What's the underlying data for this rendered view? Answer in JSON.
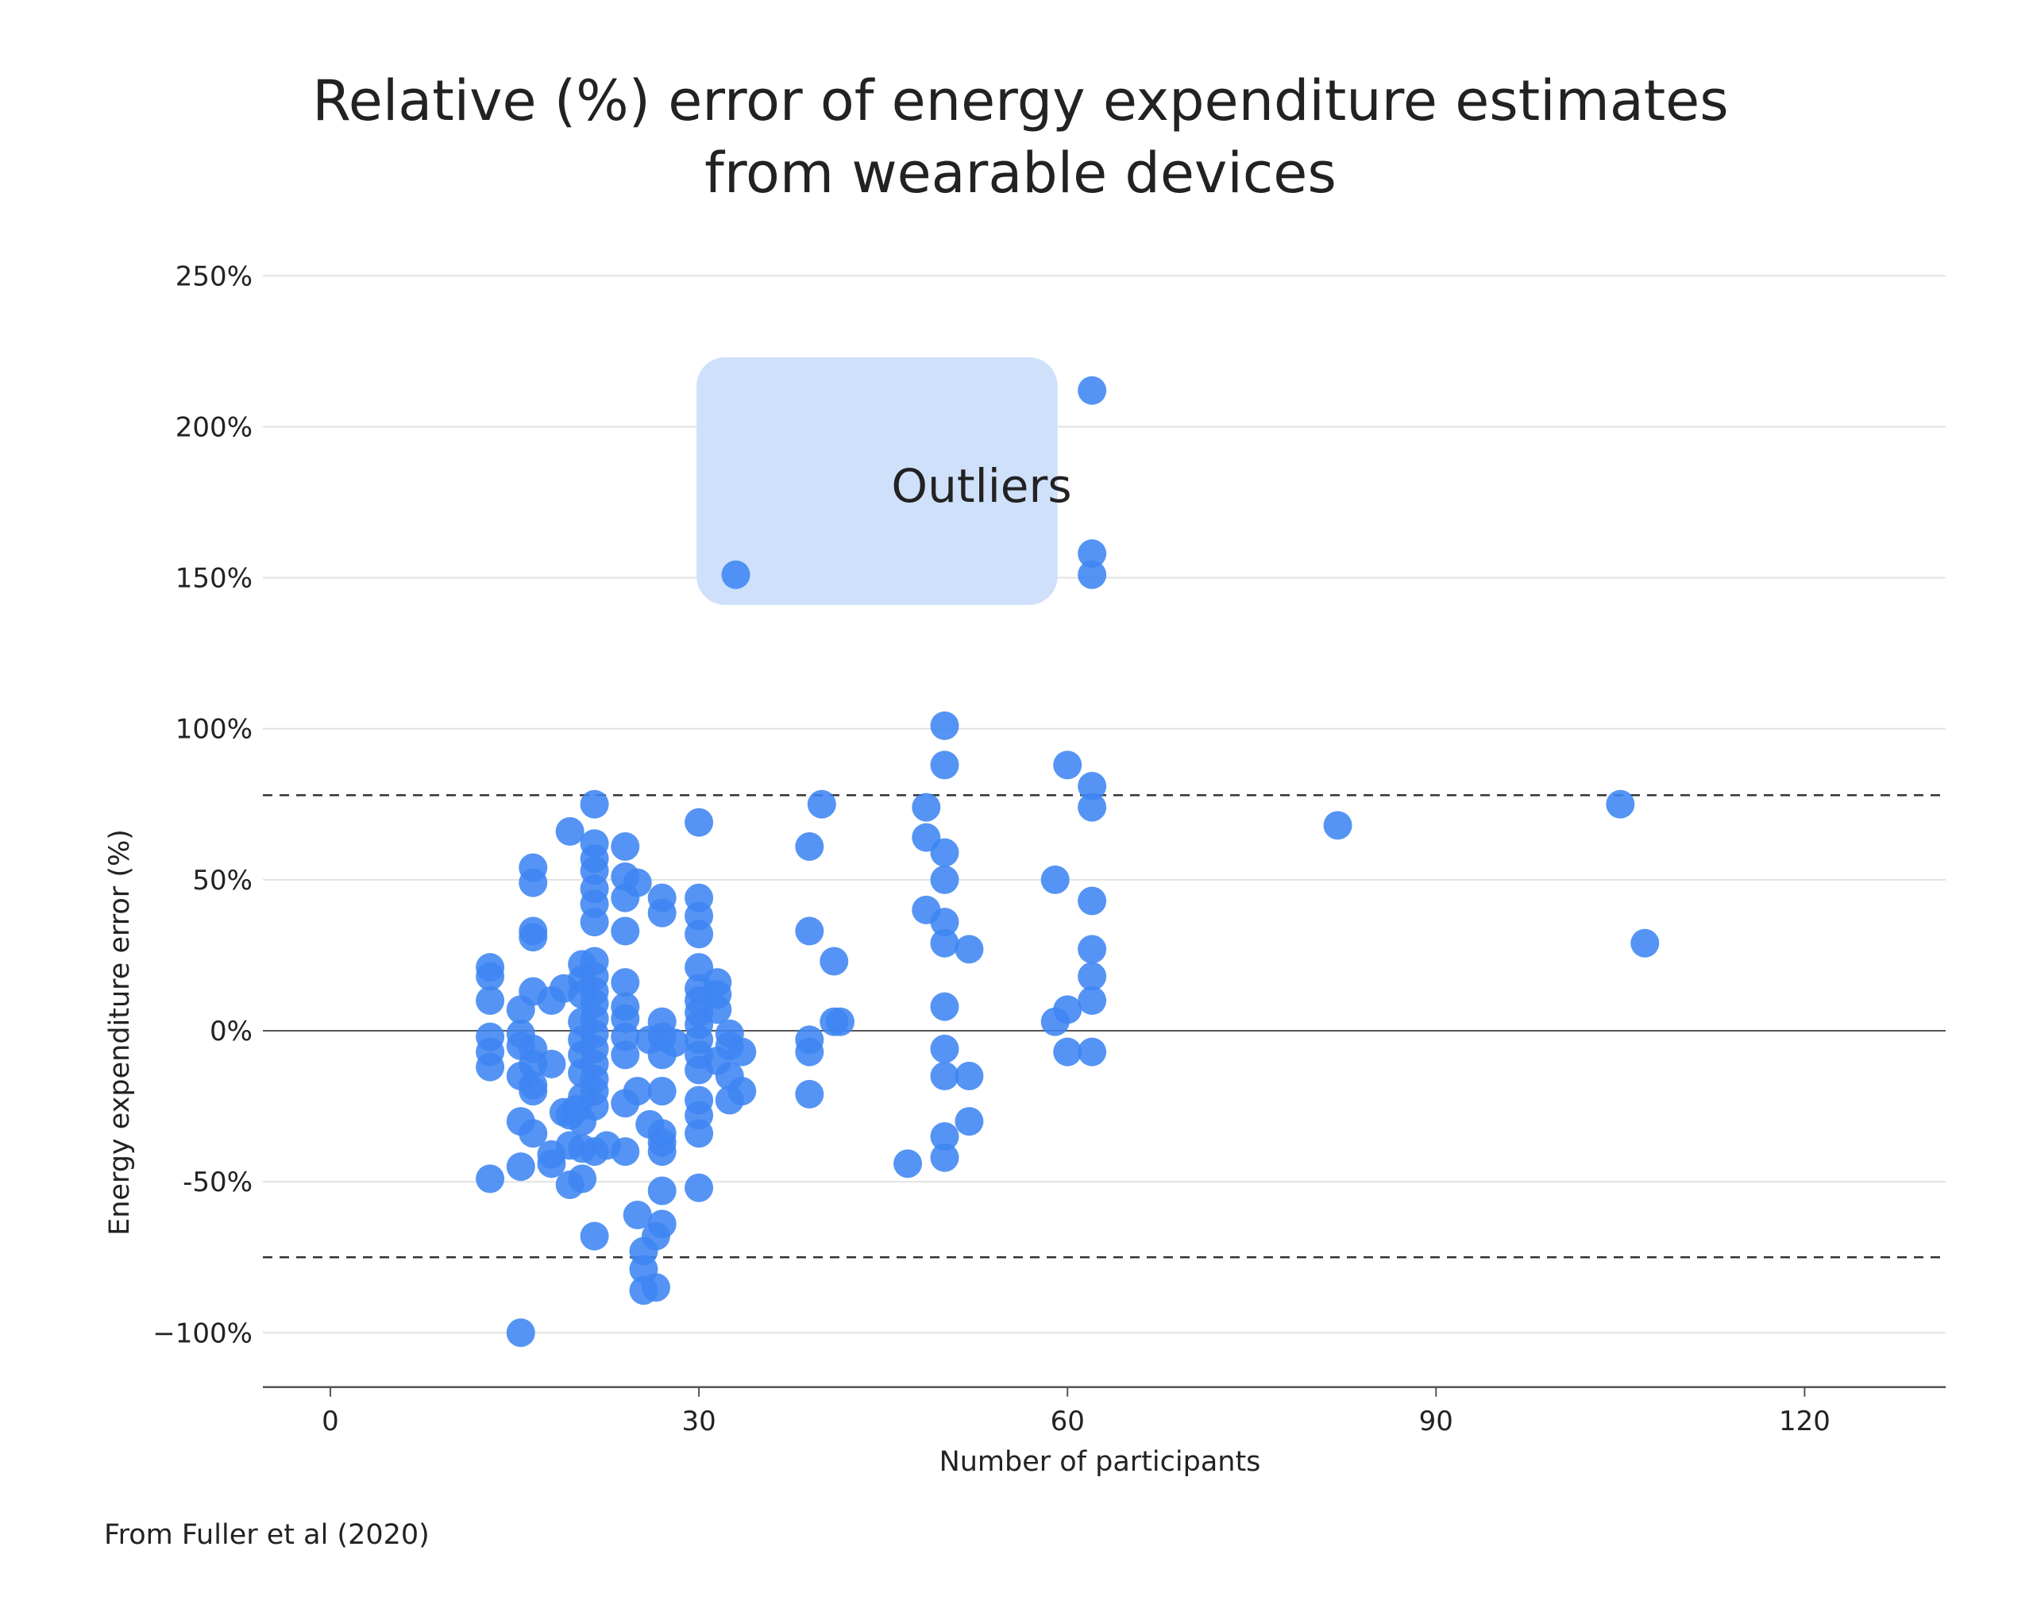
{
  "chart_data": {
    "type": "scatter",
    "title_lines": [
      "Relative (%) error of energy expenditure estimates",
      "from wearable devices"
    ],
    "xlabel": "Number of participants",
    "ylabel": "Energy expenditure error (%)",
    "xlim": [
      -5,
      125
    ],
    "ylim": [
      -118,
      255
    ],
    "x_ticks": [
      0,
      30,
      60,
      90,
      120
    ],
    "x_tick_labels": [
      "0",
      "30",
      "60",
      "90",
      "120"
    ],
    "y_ticks": [
      -100,
      -50,
      0,
      50,
      100,
      150,
      200,
      250
    ],
    "y_tick_labels": [
      "−100%",
      "-50%",
      "0%",
      "50%",
      "100%",
      "150%",
      "200%",
      "250%"
    ],
    "grid": "horizontal",
    "zero_line": 0,
    "reference_lines": [
      78,
      -75
    ],
    "annotation": {
      "text": "Outliers",
      "x_range": [
        30,
        59
      ],
      "y_range": [
        141,
        223
      ]
    },
    "source": "From Fuller et al (2020)",
    "colors": {
      "point": "#3d85f2",
      "annotation_box": "#cfe0fb",
      "grid": "#e2e2e2",
      "axis": "#555555"
    },
    "points": [
      [
        13,
        21
      ],
      [
        13,
        18
      ],
      [
        13,
        10
      ],
      [
        13,
        -2
      ],
      [
        13,
        -7
      ],
      [
        13,
        -12
      ],
      [
        13,
        -49
      ],
      [
        15.5,
        7
      ],
      [
        15.5,
        -1
      ],
      [
        15.5,
        -5
      ],
      [
        15.5,
        -15
      ],
      [
        15.5,
        -30
      ],
      [
        15.5,
        -45
      ],
      [
        15.5,
        -100
      ],
      [
        16.5,
        54
      ],
      [
        16.5,
        49
      ],
      [
        16.5,
        33
      ],
      [
        16.5,
        31
      ],
      [
        16.5,
        13
      ],
      [
        16.5,
        -6
      ],
      [
        16.5,
        -11
      ],
      [
        16.5,
        -18
      ],
      [
        16.5,
        -20
      ],
      [
        16.5,
        -34
      ],
      [
        18,
        10
      ],
      [
        18,
        -11
      ],
      [
        18,
        -41
      ],
      [
        18,
        -44
      ],
      [
        19,
        14
      ],
      [
        19,
        -27
      ],
      [
        19.5,
        66
      ],
      [
        19.5,
        -51
      ],
      [
        19.5,
        -28
      ],
      [
        19.5,
        -38
      ],
      [
        20,
        -26
      ],
      [
        20.5,
        22
      ],
      [
        20.5,
        17
      ],
      [
        20.5,
        12
      ],
      [
        20.5,
        3
      ],
      [
        20.5,
        -3
      ],
      [
        20.5,
        -8
      ],
      [
        20.5,
        -14
      ],
      [
        20.5,
        -22
      ],
      [
        20.5,
        -30
      ],
      [
        20.5,
        -39
      ],
      [
        20.5,
        -49
      ],
      [
        21.5,
        75
      ],
      [
        21.5,
        62
      ],
      [
        21.5,
        57
      ],
      [
        21.5,
        53
      ],
      [
        21.5,
        47
      ],
      [
        21.5,
        42
      ],
      [
        21.5,
        36
      ],
      [
        21.5,
        23
      ],
      [
        21.5,
        18
      ],
      [
        21.5,
        13
      ],
      [
        21.5,
        9
      ],
      [
        21.5,
        4
      ],
      [
        21.5,
        -1
      ],
      [
        21.5,
        -6
      ],
      [
        21.5,
        -11
      ],
      [
        21.5,
        -16
      ],
      [
        21.5,
        -20
      ],
      [
        21.5,
        -25
      ],
      [
        21.5,
        -40
      ],
      [
        21.5,
        -68
      ],
      [
        22.5,
        -38
      ],
      [
        24,
        61
      ],
      [
        24,
        51
      ],
      [
        24,
        44
      ],
      [
        24,
        33
      ],
      [
        24,
        16
      ],
      [
        24,
        8
      ],
      [
        24,
        4
      ],
      [
        24,
        -2
      ],
      [
        24,
        -8
      ],
      [
        24,
        -24
      ],
      [
        24,
        -40
      ],
      [
        25,
        49
      ],
      [
        25,
        -20
      ],
      [
        25,
        -61
      ],
      [
        25.5,
        -73
      ],
      [
        25.5,
        -79
      ],
      [
        25.5,
        -86
      ],
      [
        26,
        -3
      ],
      [
        26,
        -31
      ],
      [
        26.5,
        -68
      ],
      [
        26.5,
        -85
      ],
      [
        27,
        44
      ],
      [
        27,
        39
      ],
      [
        27,
        3
      ],
      [
        27,
        -2
      ],
      [
        27,
        -8
      ],
      [
        27,
        -20
      ],
      [
        27,
        -34
      ],
      [
        27,
        -37
      ],
      [
        27,
        -40
      ],
      [
        27,
        -53
      ],
      [
        27,
        -64
      ],
      [
        28,
        -4
      ],
      [
        30,
        69
      ],
      [
        30,
        44
      ],
      [
        30,
        38
      ],
      [
        30,
        32
      ],
      [
        30,
        21
      ],
      [
        30,
        14
      ],
      [
        30,
        10
      ],
      [
        30,
        6
      ],
      [
        30,
        2
      ],
      [
        30,
        -3
      ],
      [
        30,
        -8
      ],
      [
        30,
        -13
      ],
      [
        30,
        -23
      ],
      [
        30,
        -28
      ],
      [
        30,
        -34
      ],
      [
        30,
        -52
      ],
      [
        31.5,
        16
      ],
      [
        31.5,
        12
      ],
      [
        31.5,
        7
      ],
      [
        31.5,
        -10
      ],
      [
        32.5,
        -1
      ],
      [
        32.5,
        -5
      ],
      [
        32.5,
        -15
      ],
      [
        32.5,
        -23
      ],
      [
        33.5,
        -7
      ],
      [
        33.5,
        -20
      ],
      [
        33,
        151
      ],
      [
        39,
        61
      ],
      [
        39,
        33
      ],
      [
        39,
        -3
      ],
      [
        39,
        -7
      ],
      [
        39,
        -21
      ],
      [
        40,
        75
      ],
      [
        41,
        23
      ],
      [
        41,
        3
      ],
      [
        41.5,
        3
      ],
      [
        47,
        -44
      ],
      [
        48.5,
        74
      ],
      [
        48.5,
        64
      ],
      [
        48.5,
        40
      ],
      [
        50,
        101
      ],
      [
        50,
        88
      ],
      [
        50,
        59
      ],
      [
        50,
        50
      ],
      [
        50,
        36
      ],
      [
        50,
        29
      ],
      [
        50,
        8
      ],
      [
        50,
        -6
      ],
      [
        50,
        -15
      ],
      [
        50,
        -35
      ],
      [
        50,
        -42
      ],
      [
        52,
        27
      ],
      [
        52,
        -15
      ],
      [
        52,
        -30
      ],
      [
        59,
        50
      ],
      [
        59,
        3
      ],
      [
        60,
        88
      ],
      [
        60,
        7
      ],
      [
        60,
        -7
      ],
      [
        62,
        212
      ],
      [
        62,
        158
      ],
      [
        62,
        151
      ],
      [
        62,
        81
      ],
      [
        62,
        74
      ],
      [
        62,
        43
      ],
      [
        62,
        27
      ],
      [
        62,
        18
      ],
      [
        62,
        10
      ],
      [
        62,
        -7
      ],
      [
        82,
        68
      ],
      [
        105,
        75
      ],
      [
        107,
        29
      ]
    ]
  },
  "page": {
    "title_line1": "Relative (%) error of energy expenditure estimates",
    "title_line2": "from wearable devices",
    "source": "From Fuller et al (2020)",
    "annotation": "Outliers",
    "xlabel": "Number of participants",
    "ylabel": "Energy expenditure error (%)"
  }
}
